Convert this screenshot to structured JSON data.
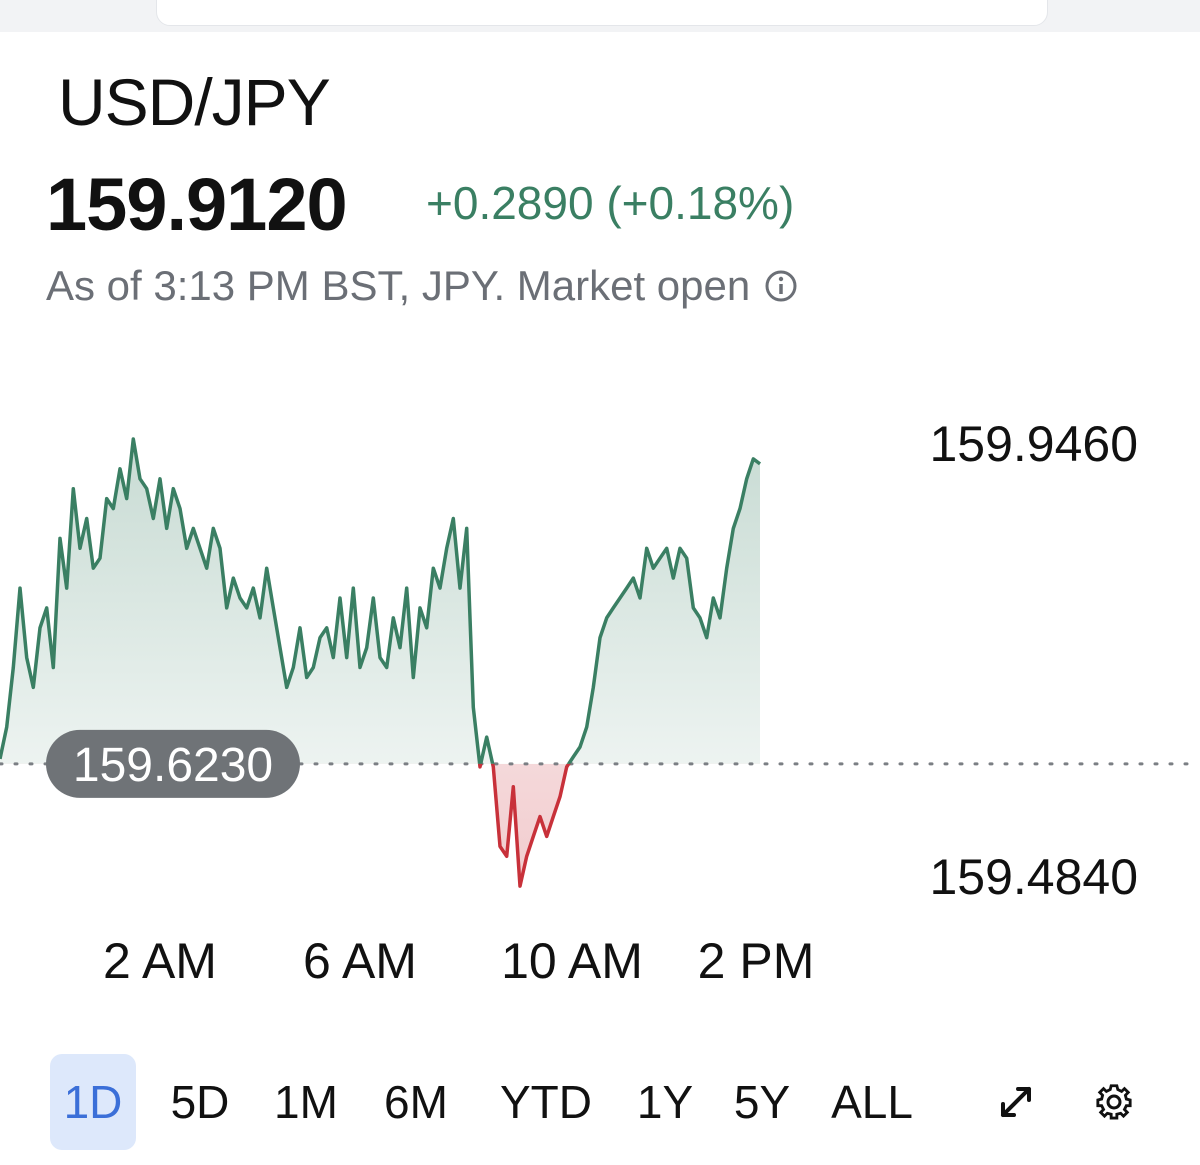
{
  "header": {
    "symbol": "USD/JPY",
    "price": "159.9120",
    "change": "+0.2890 (+0.18%)",
    "as_of": "As of 3:13 PM BST, JPY. Market open"
  },
  "icons": {
    "info": "info-icon",
    "expand": "expand-icon",
    "settings": "gear-icon"
  },
  "colors": {
    "up": "#3a7f63",
    "down": "#c8313a",
    "baseline_badge": "#6f7377",
    "active_range": "#3b6fd8"
  },
  "chart_data": {
    "type": "area",
    "ylim": [
      159.484,
      159.946
    ],
    "reference_line": 159.623,
    "reference_label": "159.6230",
    "y_ticks": [
      "159.9460",
      "159.4840"
    ],
    "x_ticks": [
      "2 AM",
      "6 AM",
      "10 AM",
      "2 PM"
    ],
    "series": [
      {
        "values": [
          159.628,
          159.66,
          159.72,
          159.8,
          159.73,
          159.7,
          159.76,
          159.78,
          159.72,
          159.85,
          159.8,
          159.9,
          159.84,
          159.87,
          159.82,
          159.83,
          159.89,
          159.88,
          159.92,
          159.89,
          159.95,
          159.91,
          159.9,
          159.87,
          159.91,
          159.86,
          159.9,
          159.88,
          159.84,
          159.86,
          159.84,
          159.82,
          159.86,
          159.84,
          159.78,
          159.81,
          159.79,
          159.78,
          159.8,
          159.77,
          159.82,
          159.78,
          159.74,
          159.7,
          159.72,
          159.76,
          159.71,
          159.72,
          159.75,
          159.76,
          159.73,
          159.79,
          159.73,
          159.8,
          159.72,
          159.74,
          159.79,
          159.73,
          159.72,
          159.77,
          159.74,
          159.8,
          159.71,
          159.78,
          159.76,
          159.82,
          159.8,
          159.84,
          159.87,
          159.8,
          159.86,
          159.68,
          159.62,
          159.65,
          159.62,
          159.54,
          159.53,
          159.6,
          159.5,
          159.53,
          159.55,
          159.57,
          159.55,
          159.57,
          159.59,
          159.62,
          159.63,
          159.64,
          159.66,
          159.7,
          159.75,
          159.77,
          159.78,
          159.79,
          159.8,
          159.81,
          159.79,
          159.84,
          159.82,
          159.83,
          159.84,
          159.81,
          159.84,
          159.83,
          159.78,
          159.77,
          159.75,
          159.79,
          159.77,
          159.82,
          159.86,
          159.88,
          159.91,
          159.93,
          159.925
        ]
      }
    ]
  },
  "ranges": [
    {
      "label": "1D",
      "active": true
    },
    {
      "label": "5D",
      "active": false
    },
    {
      "label": "1M",
      "active": false
    },
    {
      "label": "6M",
      "active": false
    },
    {
      "label": "YTD",
      "active": false
    },
    {
      "label": "1Y",
      "active": false
    },
    {
      "label": "5Y",
      "active": false
    },
    {
      "label": "ALL",
      "active": false
    }
  ]
}
